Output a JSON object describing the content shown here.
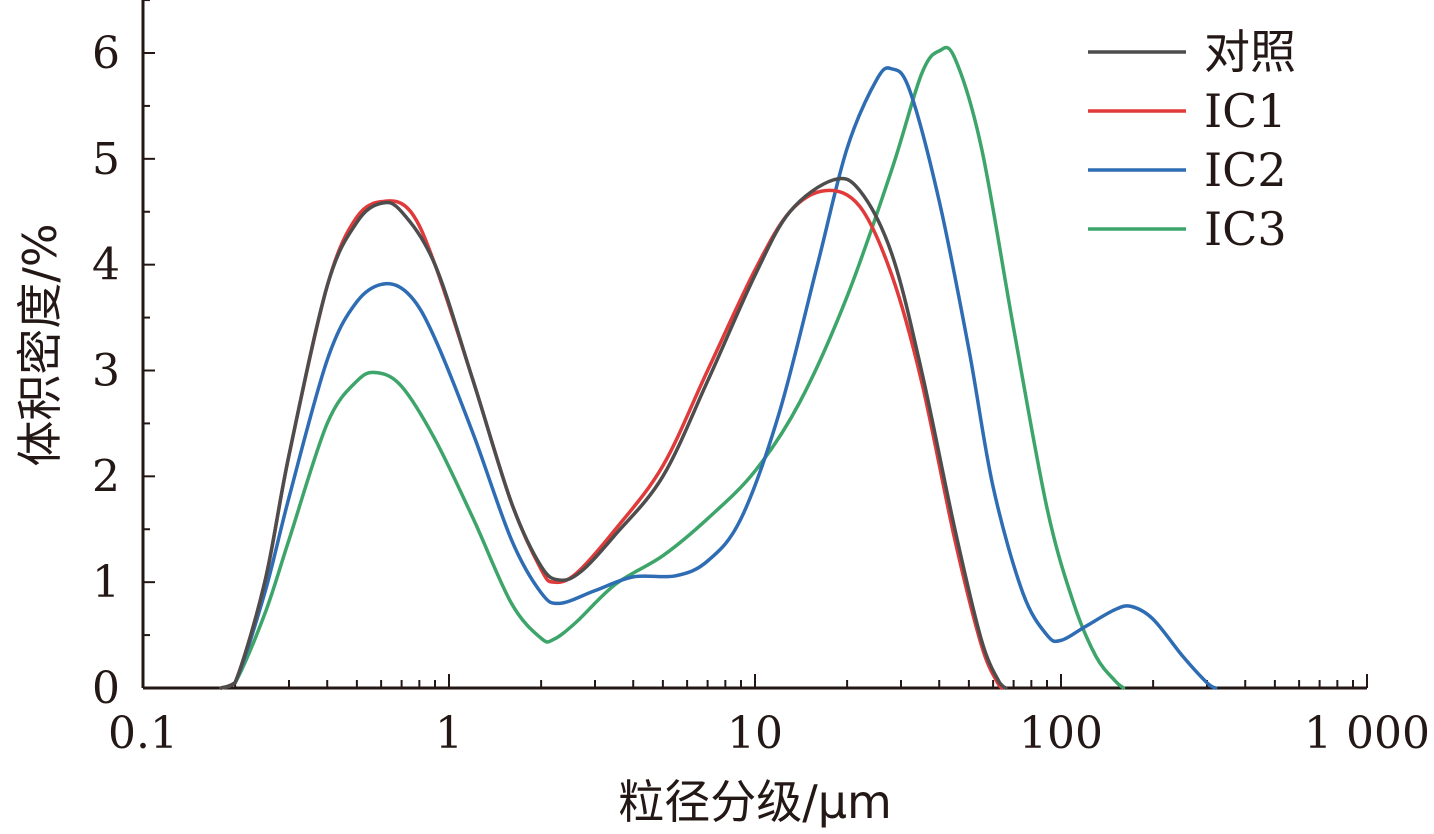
{
  "chart_data": {
    "type": "line",
    "title": "",
    "xlabel": "粒径分级/μm",
    "ylabel": "体积密度/%",
    "x_scale": "log",
    "xlim": [
      0.1,
      1000
    ],
    "ylim": [
      0,
      6.5
    ],
    "x_ticks": [
      "0.1",
      "1",
      "10",
      "100",
      "1 000"
    ],
    "y_ticks": [
      "0",
      "1",
      "2",
      "3",
      "4",
      "5",
      "6"
    ],
    "grid": false,
    "legend_position": "top-right",
    "series": [
      {
        "name": "对照",
        "color": "#4d4d4d",
        "points": [
          [
            0.18,
            0
          ],
          [
            0.2,
            0.05
          ],
          [
            0.25,
            1.0
          ],
          [
            0.3,
            2.2
          ],
          [
            0.4,
            3.8
          ],
          [
            0.5,
            4.4
          ],
          [
            0.6,
            4.58
          ],
          [
            0.7,
            4.5
          ],
          [
            0.9,
            4.0
          ],
          [
            1.2,
            2.9
          ],
          [
            1.6,
            1.75
          ],
          [
            2.0,
            1.15
          ],
          [
            2.3,
            1.02
          ],
          [
            2.7,
            1.1
          ],
          [
            3.5,
            1.45
          ],
          [
            5,
            2.0
          ],
          [
            7,
            2.9
          ],
          [
            10,
            3.9
          ],
          [
            13,
            4.5
          ],
          [
            18,
            4.8
          ],
          [
            22,
            4.7
          ],
          [
            28,
            4.1
          ],
          [
            35,
            3.0
          ],
          [
            45,
            1.5
          ],
          [
            55,
            0.45
          ],
          [
            63,
            0.05
          ],
          [
            66,
            0
          ]
        ]
      },
      {
        "name": "IC1",
        "color": "#e03a3a",
        "points": [
          [
            0.18,
            0
          ],
          [
            0.2,
            0.05
          ],
          [
            0.25,
            1.0
          ],
          [
            0.3,
            2.2
          ],
          [
            0.4,
            3.8
          ],
          [
            0.5,
            4.45
          ],
          [
            0.62,
            4.6
          ],
          [
            0.75,
            4.5
          ],
          [
            0.9,
            4.0
          ],
          [
            1.2,
            2.9
          ],
          [
            1.6,
            1.75
          ],
          [
            2.0,
            1.12
          ],
          [
            2.2,
            1.0
          ],
          [
            2.6,
            1.08
          ],
          [
            3.5,
            1.5
          ],
          [
            5,
            2.1
          ],
          [
            7,
            3.0
          ],
          [
            10,
            3.95
          ],
          [
            13,
            4.5
          ],
          [
            17,
            4.7
          ],
          [
            22,
            4.55
          ],
          [
            28,
            3.9
          ],
          [
            35,
            2.9
          ],
          [
            45,
            1.4
          ],
          [
            55,
            0.4
          ],
          [
            62,
            0.05
          ],
          [
            64,
            0
          ]
        ]
      },
      {
        "name": "IC2",
        "color": "#2e6db4",
        "points": [
          [
            0.18,
            0
          ],
          [
            0.2,
            0.05
          ],
          [
            0.25,
            0.9
          ],
          [
            0.3,
            1.8
          ],
          [
            0.4,
            3.1
          ],
          [
            0.5,
            3.65
          ],
          [
            0.62,
            3.82
          ],
          [
            0.75,
            3.7
          ],
          [
            0.9,
            3.3
          ],
          [
            1.2,
            2.4
          ],
          [
            1.6,
            1.4
          ],
          [
            2.0,
            0.9
          ],
          [
            2.3,
            0.8
          ],
          [
            3,
            0.92
          ],
          [
            4,
            1.05
          ],
          [
            5.5,
            1.06
          ],
          [
            7,
            1.2
          ],
          [
            9,
            1.6
          ],
          [
            12,
            2.6
          ],
          [
            16,
            4.0
          ],
          [
            20,
            5.1
          ],
          [
            25,
            5.75
          ],
          [
            28,
            5.85
          ],
          [
            32,
            5.65
          ],
          [
            40,
            4.6
          ],
          [
            50,
            3.2
          ],
          [
            60,
            1.9
          ],
          [
            75,
            0.9
          ],
          [
            90,
            0.5
          ],
          [
            100,
            0.45
          ],
          [
            120,
            0.58
          ],
          [
            150,
            0.74
          ],
          [
            170,
            0.77
          ],
          [
            200,
            0.65
          ],
          [
            250,
            0.3
          ],
          [
            300,
            0.05
          ],
          [
            320,
            0
          ]
        ]
      },
      {
        "name": "IC3",
        "color": "#3da56a",
        "points": [
          [
            0.18,
            0
          ],
          [
            0.2,
            0.05
          ],
          [
            0.25,
            0.7
          ],
          [
            0.3,
            1.4
          ],
          [
            0.4,
            2.5
          ],
          [
            0.5,
            2.9
          ],
          [
            0.58,
            2.98
          ],
          [
            0.7,
            2.85
          ],
          [
            0.9,
            2.35
          ],
          [
            1.2,
            1.6
          ],
          [
            1.6,
            0.8
          ],
          [
            2.0,
            0.47
          ],
          [
            2.2,
            0.46
          ],
          [
            2.6,
            0.62
          ],
          [
            3.5,
            0.98
          ],
          [
            5,
            1.25
          ],
          [
            7,
            1.6
          ],
          [
            10,
            2.05
          ],
          [
            14,
            2.7
          ],
          [
            20,
            3.7
          ],
          [
            28,
            4.9
          ],
          [
            35,
            5.8
          ],
          [
            40,
            6.02
          ],
          [
            45,
            5.95
          ],
          [
            55,
            5.1
          ],
          [
            70,
            3.4
          ],
          [
            90,
            1.7
          ],
          [
            110,
            0.8
          ],
          [
            130,
            0.3
          ],
          [
            150,
            0.07
          ],
          [
            160,
            0
          ]
        ]
      }
    ]
  }
}
